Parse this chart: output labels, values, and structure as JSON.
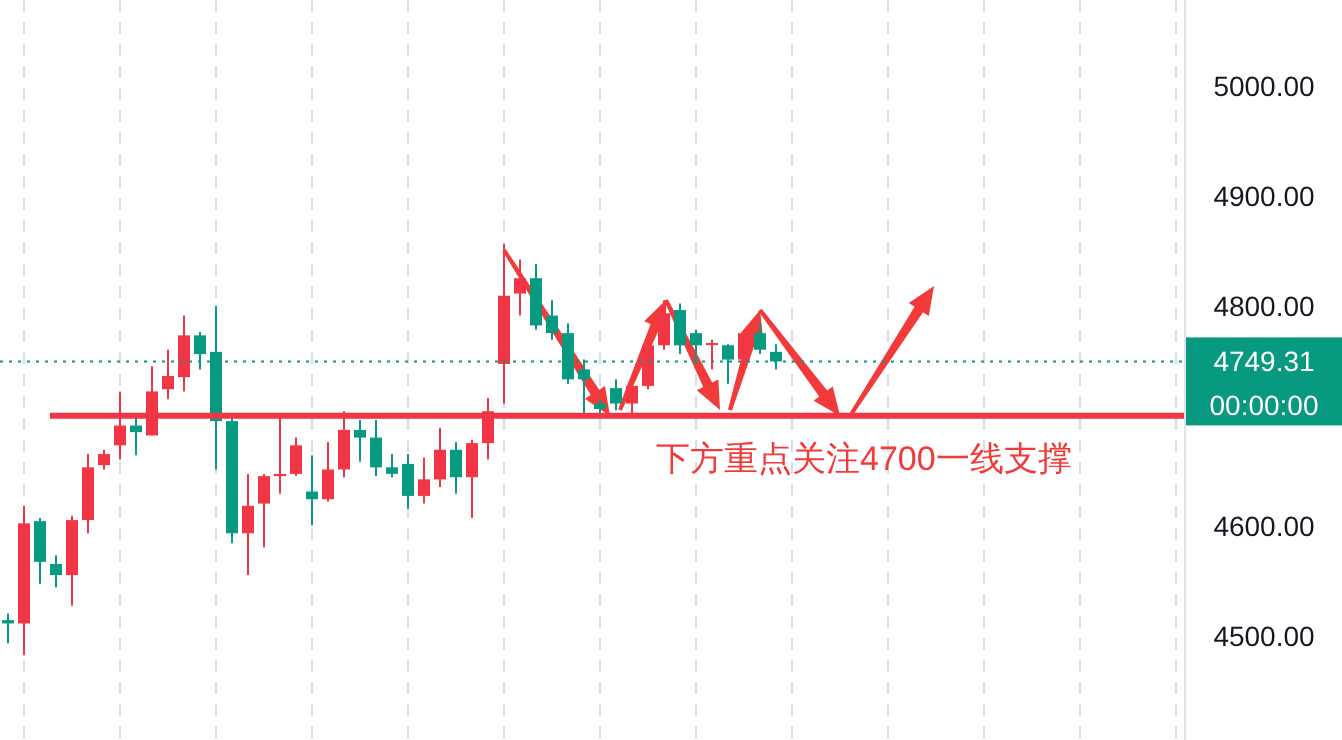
{
  "chart_data": {
    "type": "candlestick",
    "categories": [
      null,
      null,
      null,
      null,
      null,
      null,
      null,
      null,
      null,
      null,
      null,
      null,
      null,
      null,
      null,
      null,
      null,
      null,
      null,
      null,
      null,
      null,
      null,
      null,
      null,
      null,
      null,
      null,
      null,
      null,
      null,
      null,
      null,
      null,
      null,
      null,
      null,
      null,
      null,
      null,
      null,
      null,
      null,
      null,
      null,
      null,
      null,
      null,
      null,
      null,
      null,
      null,
      null,
      null,
      null,
      null,
      null,
      null,
      null,
      null,
      null,
      null,
      null,
      null,
      null,
      null,
      null,
      null,
      null,
      null,
      null,
      null,
      null,
      null
    ],
    "ohlc": [
      [
        4514,
        4520,
        4493,
        4511
      ],
      [
        4511,
        4618,
        4482,
        4602
      ],
      [
        4604,
        4607,
        4547,
        4567
      ],
      [
        4565,
        4573,
        4544,
        4555
      ],
      [
        4555,
        4609,
        4527,
        4605
      ],
      [
        4605,
        4665,
        4593,
        4653
      ],
      [
        4655,
        4669,
        4651,
        4665
      ],
      [
        4673,
        4722,
        4660,
        4691
      ],
      [
        4691,
        4698,
        4664,
        4685
      ],
      [
        4682,
        4745,
        4682,
        4722
      ],
      [
        4724,
        4760,
        4715,
        4736
      ],
      [
        4735,
        4791,
        4722,
        4773
      ],
      [
        4773,
        4776,
        4742,
        4756
      ],
      [
        4758,
        4800,
        4651,
        4695
      ],
      [
        4695,
        4700,
        4584,
        4593
      ],
      [
        4593,
        4647,
        4555,
        4618
      ],
      [
        4620,
        4647,
        4580,
        4645
      ],
      [
        4645,
        4698,
        4629,
        4647
      ],
      [
        4647,
        4680,
        4645,
        4673
      ],
      [
        4631,
        4664,
        4600,
        4624
      ],
      [
        4624,
        4676,
        4622,
        4651
      ],
      [
        4651,
        4704,
        4644,
        4687
      ],
      [
        4687,
        4696,
        4658,
        4680
      ],
      [
        4680,
        4696,
        4645,
        4653
      ],
      [
        4653,
        4665,
        4644,
        4647
      ],
      [
        4656,
        4665,
        4615,
        4627
      ],
      [
        4627,
        4662,
        4620,
        4642
      ],
      [
        4642,
        4689,
        4635,
        4669
      ],
      [
        4669,
        4676,
        4629,
        4644
      ],
      [
        4644,
        4678,
        4607,
        4675
      ],
      [
        4675,
        4716,
        4660,
        4704
      ],
      [
        4747,
        4856,
        4711,
        4809
      ],
      [
        4811,
        4842,
        4791,
        4825
      ],
      [
        4825,
        4838,
        4778,
        4782
      ],
      [
        4791,
        4805,
        4769,
        4775
      ],
      [
        4775,
        4784,
        4729,
        4733
      ],
      [
        4742,
        4751,
        4700,
        4733
      ],
      [
        4711,
        4715,
        4700,
        4706
      ],
      [
        4725,
        4733,
        4705,
        4711
      ],
      [
        4711,
        4729,
        4702,
        4727
      ],
      [
        4727,
        4769,
        4724,
        4764
      ],
      [
        4764,
        4805,
        4760,
        4793
      ],
      [
        4796,
        4802,
        4756,
        4764
      ],
      [
        4775,
        4778,
        4747,
        4764
      ],
      [
        4765,
        4769,
        4742,
        4766
      ],
      [
        4764,
        4765,
        4729,
        4751
      ],
      [
        4751,
        4778,
        4747,
        4775
      ],
      [
        4775,
        4784,
        4756,
        4760
      ],
      [
        4758,
        4765,
        4742,
        4749.31
      ],
      null,
      null,
      null,
      null,
      null,
      null,
      null,
      null,
      null,
      null,
      null,
      null,
      null,
      null,
      null,
      null,
      null,
      null,
      null,
      null,
      null,
      null,
      null,
      null,
      null
    ],
    "colors": [
      "#089981",
      "#f23645",
      "#089981",
      "#089981",
      "#f23645",
      "#f23645",
      "#f23645",
      "#f23645",
      "#089981",
      "#f23645",
      "#f23645",
      "#f23645",
      "#089981",
      "#089981",
      "#089981",
      "#f23645",
      "#f23645",
      "#f23645",
      "#f23645",
      "#089981",
      "#f23645",
      "#f23645",
      "#089981",
      "#089981",
      "#089981",
      "#089981",
      "#f23645",
      "#f23645",
      "#089981",
      "#f23645",
      "#f23645",
      "#f23645",
      "#f23645",
      "#089981",
      "#089981",
      "#089981",
      "#089981",
      "#089981",
      "#089981",
      "#f23645",
      "#f23645",
      "#f23645",
      "#089981",
      "#089981",
      "#f23645",
      "#089981",
      "#f23645",
      "#089981",
      "#089981",
      null,
      null,
      null,
      null,
      null,
      null,
      null,
      null,
      null,
      null,
      null,
      null,
      null,
      null,
      null,
      null,
      null,
      null,
      null,
      null,
      null,
      null,
      null,
      null,
      null
    ],
    "ylim": [
      4405,
      5078
    ],
    "grid": "x",
    "yticks": [
      {
        "value": 4500,
        "label": "4500.00"
      },
      {
        "value": 4600,
        "label": "4600.00"
      },
      {
        "value": 4800,
        "label": "4800.00"
      },
      {
        "value": 4900,
        "label": "4900.00"
      },
      {
        "value": 5000,
        "label": "5000.00"
      }
    ],
    "ref_lines": [
      {
        "axis": "y",
        "value": 4749.31,
        "label": "4749.31",
        "color": "#089981",
        "line_style": "dotted"
      },
      {
        "axis": "y",
        "value": 4700,
        "label": null,
        "color": "#f23645",
        "line_style": "solid"
      }
    ],
    "annotations": [
      "00:00:00",
      "下方重点关注4700一线支撑"
    ]
  }
}
